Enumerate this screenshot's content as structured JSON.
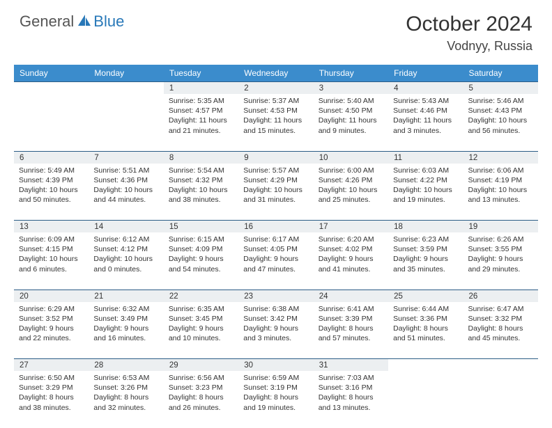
{
  "brand": {
    "word1": "General",
    "word2": "Blue"
  },
  "title": "October 2024",
  "location": "Vodnyy, Russia",
  "colors": {
    "header_bg": "#3b8ccc",
    "header_text": "#ffffff",
    "daynum_bg": "#eceff1",
    "row_border": "#2b5c85",
    "text": "#333333",
    "brand_blue": "#2878b8",
    "brand_gray": "#555555"
  },
  "weekdays": [
    "Sunday",
    "Monday",
    "Tuesday",
    "Wednesday",
    "Thursday",
    "Friday",
    "Saturday"
  ],
  "weeks": [
    [
      null,
      null,
      {
        "n": "1",
        "sunrise": "Sunrise: 5:35 AM",
        "sunset": "Sunset: 4:57 PM",
        "day": "Daylight: 11 hours and 21 minutes."
      },
      {
        "n": "2",
        "sunrise": "Sunrise: 5:37 AM",
        "sunset": "Sunset: 4:53 PM",
        "day": "Daylight: 11 hours and 15 minutes."
      },
      {
        "n": "3",
        "sunrise": "Sunrise: 5:40 AM",
        "sunset": "Sunset: 4:50 PM",
        "day": "Daylight: 11 hours and 9 minutes."
      },
      {
        "n": "4",
        "sunrise": "Sunrise: 5:43 AM",
        "sunset": "Sunset: 4:46 PM",
        "day": "Daylight: 11 hours and 3 minutes."
      },
      {
        "n": "5",
        "sunrise": "Sunrise: 5:46 AM",
        "sunset": "Sunset: 4:43 PM",
        "day": "Daylight: 10 hours and 56 minutes."
      }
    ],
    [
      {
        "n": "6",
        "sunrise": "Sunrise: 5:49 AM",
        "sunset": "Sunset: 4:39 PM",
        "day": "Daylight: 10 hours and 50 minutes."
      },
      {
        "n": "7",
        "sunrise": "Sunrise: 5:51 AM",
        "sunset": "Sunset: 4:36 PM",
        "day": "Daylight: 10 hours and 44 minutes."
      },
      {
        "n": "8",
        "sunrise": "Sunrise: 5:54 AM",
        "sunset": "Sunset: 4:32 PM",
        "day": "Daylight: 10 hours and 38 minutes."
      },
      {
        "n": "9",
        "sunrise": "Sunrise: 5:57 AM",
        "sunset": "Sunset: 4:29 PM",
        "day": "Daylight: 10 hours and 31 minutes."
      },
      {
        "n": "10",
        "sunrise": "Sunrise: 6:00 AM",
        "sunset": "Sunset: 4:26 PM",
        "day": "Daylight: 10 hours and 25 minutes."
      },
      {
        "n": "11",
        "sunrise": "Sunrise: 6:03 AM",
        "sunset": "Sunset: 4:22 PM",
        "day": "Daylight: 10 hours and 19 minutes."
      },
      {
        "n": "12",
        "sunrise": "Sunrise: 6:06 AM",
        "sunset": "Sunset: 4:19 PM",
        "day": "Daylight: 10 hours and 13 minutes."
      }
    ],
    [
      {
        "n": "13",
        "sunrise": "Sunrise: 6:09 AM",
        "sunset": "Sunset: 4:15 PM",
        "day": "Daylight: 10 hours and 6 minutes."
      },
      {
        "n": "14",
        "sunrise": "Sunrise: 6:12 AM",
        "sunset": "Sunset: 4:12 PM",
        "day": "Daylight: 10 hours and 0 minutes."
      },
      {
        "n": "15",
        "sunrise": "Sunrise: 6:15 AM",
        "sunset": "Sunset: 4:09 PM",
        "day": "Daylight: 9 hours and 54 minutes."
      },
      {
        "n": "16",
        "sunrise": "Sunrise: 6:17 AM",
        "sunset": "Sunset: 4:05 PM",
        "day": "Daylight: 9 hours and 47 minutes."
      },
      {
        "n": "17",
        "sunrise": "Sunrise: 6:20 AM",
        "sunset": "Sunset: 4:02 PM",
        "day": "Daylight: 9 hours and 41 minutes."
      },
      {
        "n": "18",
        "sunrise": "Sunrise: 6:23 AM",
        "sunset": "Sunset: 3:59 PM",
        "day": "Daylight: 9 hours and 35 minutes."
      },
      {
        "n": "19",
        "sunrise": "Sunrise: 6:26 AM",
        "sunset": "Sunset: 3:55 PM",
        "day": "Daylight: 9 hours and 29 minutes."
      }
    ],
    [
      {
        "n": "20",
        "sunrise": "Sunrise: 6:29 AM",
        "sunset": "Sunset: 3:52 PM",
        "day": "Daylight: 9 hours and 22 minutes."
      },
      {
        "n": "21",
        "sunrise": "Sunrise: 6:32 AM",
        "sunset": "Sunset: 3:49 PM",
        "day": "Daylight: 9 hours and 16 minutes."
      },
      {
        "n": "22",
        "sunrise": "Sunrise: 6:35 AM",
        "sunset": "Sunset: 3:45 PM",
        "day": "Daylight: 9 hours and 10 minutes."
      },
      {
        "n": "23",
        "sunrise": "Sunrise: 6:38 AM",
        "sunset": "Sunset: 3:42 PM",
        "day": "Daylight: 9 hours and 3 minutes."
      },
      {
        "n": "24",
        "sunrise": "Sunrise: 6:41 AM",
        "sunset": "Sunset: 3:39 PM",
        "day": "Daylight: 8 hours and 57 minutes."
      },
      {
        "n": "25",
        "sunrise": "Sunrise: 6:44 AM",
        "sunset": "Sunset: 3:36 PM",
        "day": "Daylight: 8 hours and 51 minutes."
      },
      {
        "n": "26",
        "sunrise": "Sunrise: 6:47 AM",
        "sunset": "Sunset: 3:32 PM",
        "day": "Daylight: 8 hours and 45 minutes."
      }
    ],
    [
      {
        "n": "27",
        "sunrise": "Sunrise: 6:50 AM",
        "sunset": "Sunset: 3:29 PM",
        "day": "Daylight: 8 hours and 38 minutes."
      },
      {
        "n": "28",
        "sunrise": "Sunrise: 6:53 AM",
        "sunset": "Sunset: 3:26 PM",
        "day": "Daylight: 8 hours and 32 minutes."
      },
      {
        "n": "29",
        "sunrise": "Sunrise: 6:56 AM",
        "sunset": "Sunset: 3:23 PM",
        "day": "Daylight: 8 hours and 26 minutes."
      },
      {
        "n": "30",
        "sunrise": "Sunrise: 6:59 AM",
        "sunset": "Sunset: 3:19 PM",
        "day": "Daylight: 8 hours and 19 minutes."
      },
      {
        "n": "31",
        "sunrise": "Sunrise: 7:03 AM",
        "sunset": "Sunset: 3:16 PM",
        "day": "Daylight: 8 hours and 13 minutes."
      },
      null,
      null
    ]
  ]
}
